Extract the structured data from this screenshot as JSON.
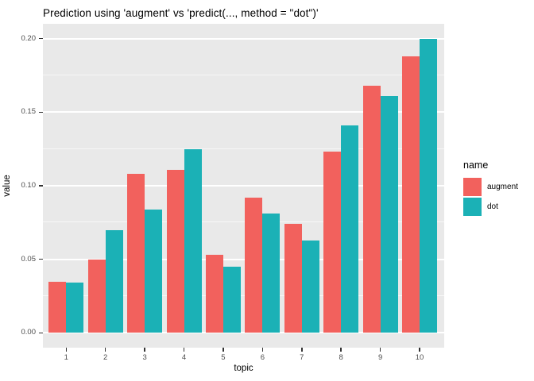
{
  "title": "Prediction using 'augment' vs 'predict(..., method = \"dot\")'",
  "colors": {
    "augment": "#F2615D",
    "dot": "#1BB1B6",
    "panel_background": "#E9E9E9",
    "grid_major": "#FFFFFF",
    "grid_minor": "#F7F7F7",
    "axis_text": "#4D4D4D",
    "tick_mark": "#333333"
  },
  "legend": {
    "title": "name",
    "items": [
      {
        "label": "augment",
        "color": "#F2615D"
      },
      {
        "label": "dot",
        "color": "#1BB1B6"
      }
    ]
  },
  "axes": {
    "x_title": "topic",
    "y_title": "value"
  },
  "chart_data": {
    "type": "bar",
    "title": "Prediction using 'augment' vs 'predict(..., method = \"dot\")'",
    "xlabel": "topic",
    "ylabel": "value",
    "categories": [
      "1",
      "2",
      "3",
      "4",
      "5",
      "6",
      "7",
      "8",
      "9",
      "10"
    ],
    "series": [
      {
        "name": "augment",
        "color": "#F2615D",
        "values": [
          0.035,
          0.05,
          0.108,
          0.111,
          0.053,
          0.092,
          0.074,
          0.123,
          0.168,
          0.188
        ]
      },
      {
        "name": "dot",
        "color": "#1BB1B6",
        "values": [
          0.034,
          0.07,
          0.084,
          0.125,
          0.045,
          0.081,
          0.063,
          0.141,
          0.161,
          0.2
        ]
      }
    ],
    "y_ticks": [
      {
        "value": 0.0,
        "label": "0.00"
      },
      {
        "value": 0.05,
        "label": "0.05"
      },
      {
        "value": 0.1,
        "label": "0.10"
      },
      {
        "value": 0.15,
        "label": "0.15"
      },
      {
        "value": 0.2,
        "label": "0.20"
      }
    ],
    "y_minor_ticks": [
      0.025,
      0.075,
      0.125,
      0.175
    ],
    "ylim": [
      -0.01,
      0.21
    ],
    "grid": true,
    "legend_position": "right",
    "panel_background": "gray",
    "bar_mode": "dodge"
  }
}
